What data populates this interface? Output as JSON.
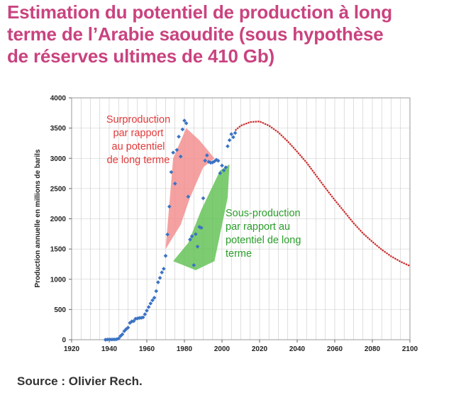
{
  "title_lines": [
    "Estimation du potentiel de production à long",
    "terme de l’Arabie saoudite (sous hypothèse",
    "de réserves ultimes de 410 Gb)"
  ],
  "source": "Source : Olivier Rech.",
  "chart_data": {
    "type": "scatter",
    "title": "Estimation du potentiel de production à long terme de l’Arabie saoudite (sous hypothèse de réserves ultimes de 410 Gb)",
    "xlabel": "",
    "ylabel": "Production annuelle en millions de barils",
    "xlim": [
      1920,
      2100
    ],
    "ylim": [
      0,
      4000
    ],
    "xticks": [
      "1920",
      "1940",
      "1960",
      "1980",
      "2000",
      "2020",
      "2040",
      "2060",
      "2080",
      "2100"
    ],
    "yticks": [
      "0",
      "500",
      "1000",
      "1500",
      "2000",
      "2500",
      "3000",
      "3500",
      "4000"
    ],
    "grid": true,
    "colors": {
      "historical": "#3b73c4",
      "potential": "#cc2a2a",
      "over_zone": "#f28a8a",
      "under_zone": "#5cbf4f",
      "over_text": "#e23a3a",
      "under_text": "#2a9d2a",
      "title": "#c9437f"
    },
    "series": [
      {
        "id": "historical",
        "points": [
          [
            1938,
            0
          ],
          [
            1939,
            4
          ],
          [
            1940,
            5
          ],
          [
            1941,
            4
          ],
          [
            1942,
            5
          ],
          [
            1943,
            5
          ],
          [
            1944,
            8
          ],
          [
            1945,
            21
          ],
          [
            1946,
            60
          ],
          [
            1947,
            90
          ],
          [
            1948,
            142
          ],
          [
            1949,
            174
          ],
          [
            1950,
            200
          ],
          [
            1951,
            278
          ],
          [
            1952,
            302
          ],
          [
            1953,
            308
          ],
          [
            1954,
            347
          ],
          [
            1955,
            352
          ],
          [
            1956,
            360
          ],
          [
            1957,
            362
          ],
          [
            1958,
            370
          ],
          [
            1959,
            421
          ],
          [
            1960,
            481
          ],
          [
            1961,
            540
          ],
          [
            1962,
            599
          ],
          [
            1963,
            652
          ],
          [
            1964,
            694
          ],
          [
            1965,
            804
          ],
          [
            1966,
            950
          ],
          [
            1967,
            1023
          ],
          [
            1968,
            1113
          ],
          [
            1969,
            1173
          ],
          [
            1970,
            1387
          ],
          [
            1971,
            1741
          ],
          [
            1972,
            2202
          ],
          [
            1973,
            2772
          ],
          [
            1974,
            3095
          ],
          [
            1975,
            2582
          ],
          [
            1976,
            3139
          ],
          [
            1977,
            3358
          ],
          [
            1978,
            3030
          ],
          [
            1979,
            3479
          ],
          [
            1980,
            3624
          ],
          [
            1981,
            3580
          ],
          [
            1982,
            2366
          ],
          [
            1983,
            1657
          ],
          [
            1984,
            1711
          ],
          [
            1985,
            1233
          ],
          [
            1986,
            1746
          ],
          [
            1987,
            1540
          ],
          [
            1988,
            1865
          ],
          [
            1989,
            1851
          ],
          [
            1990,
            2340
          ],
          [
            1991,
            2962
          ],
          [
            1992,
            3050
          ],
          [
            1993,
            2942
          ],
          [
            1994,
            2928
          ],
          [
            1995,
            2932
          ],
          [
            1996,
            2951
          ],
          [
            1997,
            2975
          ],
          [
            1998,
            2960
          ],
          [
            1999,
            2755
          ],
          [
            2000,
            2880
          ],
          [
            2001,
            2800
          ],
          [
            2002,
            2850
          ],
          [
            2003,
            3200
          ],
          [
            2004,
            3300
          ],
          [
            2005,
            3400
          ],
          [
            2006,
            3350
          ],
          [
            2007,
            3420
          ]
        ]
      },
      {
        "id": "potential",
        "points": [
          [
            2007,
            3460
          ],
          [
            2010,
            3540
          ],
          [
            2015,
            3600
          ],
          [
            2020,
            3610
          ],
          [
            2025,
            3540
          ],
          [
            2030,
            3430
          ],
          [
            2035,
            3280
          ],
          [
            2040,
            3110
          ],
          [
            2045,
            2930
          ],
          [
            2050,
            2720
          ],
          [
            2055,
            2510
          ],
          [
            2060,
            2310
          ],
          [
            2065,
            2120
          ],
          [
            2070,
            1930
          ],
          [
            2075,
            1760
          ],
          [
            2080,
            1620
          ],
          [
            2085,
            1490
          ],
          [
            2090,
            1380
          ],
          [
            2095,
            1290
          ],
          [
            2100,
            1220
          ]
        ]
      }
    ],
    "zones": [
      {
        "id": "over",
        "label_lines": [
          "Surproduction",
          "par rapport",
          "au potentiel",
          "de long terme"
        ],
        "polygon": [
          [
            1970,
            1500
          ],
          [
            1974,
            3000
          ],
          [
            1981,
            3500
          ],
          [
            1988,
            3300
          ],
          [
            1996,
            3000
          ],
          [
            1990,
            2850
          ],
          [
            1983,
            2350
          ],
          [
            1978,
            1900
          ]
        ]
      },
      {
        "id": "under",
        "label_lines": [
          "Sous-production",
          "par rapport au",
          "potentiel de long",
          "terme"
        ],
        "polygon": [
          [
            1986,
            1150
          ],
          [
            1996,
            1300
          ],
          [
            2003,
            2350
          ],
          [
            2004,
            2900
          ],
          [
            1999,
            2800
          ],
          [
            1989,
            2150
          ],
          [
            1982,
            1600
          ],
          [
            1974,
            1300
          ]
        ]
      }
    ]
  }
}
